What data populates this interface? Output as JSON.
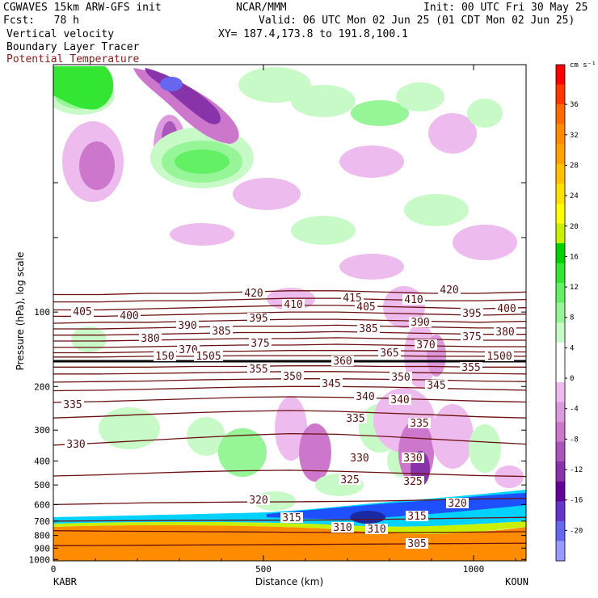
{
  "header": {
    "line1_left": "CGWAVES 15km ARW-GFS init",
    "line1_center": "NCAR/MMM",
    "line1_right": "Init: 00 UTC Fri 30 May 25",
    "line2_left": "Fcst:   78 h",
    "line2_right": "Valid: 06 UTC Mon 02 Jun 25 (01 CDT Mon 02 Jun 25)",
    "line3_left": "Vertical velocity",
    "line3_right": "XY= 187.4,173.8 to 191.8,100.1",
    "line4_left": "Boundary Layer Tracer",
    "line5_left": "Potential Temperature"
  },
  "colors": {
    "theta": "#6b0f0f",
    "tropopause": "#000000"
  },
  "chart_data": {
    "type": "heatmap",
    "ylabel": "Pressure (hPa), log scale",
    "xlabel": "Distance (km)",
    "x_ticks": [
      0,
      500,
      1000
    ],
    "x_range": [
      0,
      1125
    ],
    "y_ticks": [
      100,
      200,
      300,
      400,
      500,
      600,
      700,
      800,
      900,
      1000
    ],
    "y_range_hpa": [
      1013,
      10
    ],
    "y_scale": "log",
    "left_endpoint": "KABR",
    "right_endpoint": "KOUN",
    "colorbar": {
      "unit": "cm s⁻¹",
      "tick_labels": [
        "36",
        "32",
        "28",
        "24",
        "20",
        "16",
        "12",
        "8",
        "4",
        "0",
        "-4",
        "-8",
        "-12",
        "-16",
        "-20"
      ],
      "colors": [
        "#ff0000",
        "#ff3600",
        "#ff6a00",
        "#ff8c00",
        "#ffa200",
        "#ffc000",
        "#ffe000",
        "#ffff00",
        "#c8f000",
        "#00d200",
        "#32e632",
        "#64f064",
        "#96f596",
        "#c8fac8",
        "#ffffff",
        "#ffffff",
        "#eebbee",
        "#dd99dd",
        "#cc77cc",
        "#aa55bb",
        "#8833aa",
        "#660099",
        "#6633cc",
        "#6666ee",
        "#9999ff"
      ]
    },
    "theta_contours": [
      {
        "label": "420",
        "p": [
          85,
          85,
          84,
          84,
          83,
          82,
          82,
          83,
          84,
          84,
          83
        ]
      },
      {
        "label": "415",
        "p": [
          91,
          91,
          90,
          90,
          89,
          88,
          88,
          89,
          90,
          90,
          89
        ]
      },
      {
        "label": "410",
        "p": [
          98,
          98,
          97,
          96,
          95,
          94,
          94,
          95,
          96,
          97,
          96
        ]
      },
      {
        "label": "405",
        "p": [
          104,
          104,
          103,
          102,
          101,
          100,
          100,
          101,
          102,
          103,
          102
        ]
      },
      {
        "label": "400",
        "p": [
          111,
          110,
          110,
          109,
          108,
          107,
          107,
          108,
          109,
          110,
          109
        ]
      },
      {
        "label": "395",
        "p": [
          117,
          117,
          116,
          115,
          114,
          114,
          113,
          114,
          115,
          116,
          116
        ]
      },
      {
        "label": "390",
        "p": [
          124,
          124,
          123,
          122,
          121,
          121,
          120,
          121,
          122,
          123,
          123
        ]
      },
      {
        "label": "385",
        "p": [
          131,
          131,
          130,
          129,
          128,
          128,
          127,
          128,
          129,
          130,
          130
        ]
      },
      {
        "label": "380",
        "p": [
          139,
          139,
          138,
          137,
          136,
          136,
          135,
          136,
          137,
          138,
          138
        ]
      },
      {
        "label": "375",
        "p": [
          146,
          146,
          145,
          144,
          144,
          143,
          143,
          143,
          144,
          145,
          145
        ]
      },
      {
        "label": "370",
        "p": [
          152,
          152,
          151,
          151,
          150,
          150,
          150,
          150,
          151,
          151,
          151
        ]
      },
      {
        "label": "365",
        "p": [
          158,
          158,
          158,
          158,
          158,
          158,
          158,
          158,
          158,
          158,
          158
        ]
      },
      {
        "label": "360",
        "p": [
          167,
          167,
          167,
          166,
          166,
          165,
          165,
          166,
          166,
          167,
          167
        ]
      },
      {
        "label": "355",
        "p": [
          178,
          178,
          177,
          176,
          175,
          174,
          174,
          175,
          176,
          177,
          178
        ]
      },
      {
        "label": "350",
        "p": [
          192,
          191,
          190,
          188,
          187,
          186,
          186,
          187,
          188,
          190,
          191
        ]
      },
      {
        "label": "345",
        "p": [
          208,
          207,
          205,
          203,
          201,
          200,
          200,
          201,
          203,
          205,
          207
        ]
      },
      {
        "label": "340",
        "p": [
          232,
          230,
          227,
          224,
          221,
          220,
          221,
          223,
          226,
          229,
          231
        ]
      },
      {
        "label": "335",
        "p": [
          268,
          264,
          259,
          255,
          252,
          250,
          252,
          256,
          260,
          265,
          268
        ]
      },
      {
        "label": "330",
        "p": [
          345,
          338,
          330,
          322,
          315,
          310,
          312,
          318,
          326,
          334,
          342
        ]
      },
      {
        "label": "325",
        "p": [
          460,
          455,
          448,
          442,
          438,
          436,
          440,
          446,
          452,
          458,
          462
        ]
      },
      {
        "label": "320",
        "p": [
          600,
          595,
          590,
          588,
          586,
          585,
          583,
          580,
          575,
          570,
          566
        ]
      },
      {
        "label": "315",
        "p": [
          700,
          698,
          696,
          695,
          694,
          694,
          692,
          688,
          684,
          680,
          676
        ]
      },
      {
        "label": "310",
        "p": [
          765,
          768,
          770,
          772,
          774,
          776,
          778,
          780,
          778,
          775,
          772
        ]
      },
      {
        "label": "305",
        "p": [
          880,
          878,
          876,
          874,
          872,
          870,
          868,
          866,
          864,
          862,
          860
        ]
      }
    ],
    "theta_x": [
      0,
      112,
      225,
      337,
      450,
      562,
      675,
      787,
      900,
      1012,
      1125
    ],
    "tropopause_hpa": 158,
    "stratosphere_band_labels": [
      "150",
      "150",
      "355",
      "360"
    ]
  },
  "plot_labels": {
    "theta_text": [
      {
        "label": "420"
      },
      {
        "label": "415"
      },
      {
        "label": "410"
      },
      {
        "label": "420"
      },
      {
        "label": "405"
      },
      {
        "label": "400"
      },
      {
        "label": "410"
      },
      {
        "label": "405"
      },
      {
        "label": "395"
      },
      {
        "label": "395"
      },
      {
        "label": "400"
      },
      {
        "label": "390"
      },
      {
        "label": "385"
      },
      {
        "label": "390"
      },
      {
        "label": "380"
      },
      {
        "label": "375"
      },
      {
        "label": "385"
      },
      {
        "label": "375"
      },
      {
        "label": "380"
      },
      {
        "label": "370"
      },
      {
        "label": "370"
      },
      {
        "label": "150"
      },
      {
        "label": "1505"
      },
      {
        "label": "360"
      },
      {
        "label": "365"
      },
      {
        "label": "1500"
      },
      {
        "label": "355"
      },
      {
        "label": "350"
      },
      {
        "label": "345"
      },
      {
        "label": "350"
      },
      {
        "label": "345"
      },
      {
        "label": "355"
      },
      {
        "label": "335"
      },
      {
        "label": "340"
      },
      {
        "label": "340"
      },
      {
        "label": "335"
      },
      {
        "label": "335"
      },
      {
        "label": "330"
      },
      {
        "label": "330"
      },
      {
        "label": "330"
      },
      {
        "label": "325"
      },
      {
        "label": "325"
      },
      {
        "label": "320"
      },
      {
        "label": "320"
      },
      {
        "label": "315"
      },
      {
        "label": "315"
      },
      {
        "label": "310"
      },
      {
        "label": "310"
      },
      {
        "label": "305"
      }
    ]
  }
}
